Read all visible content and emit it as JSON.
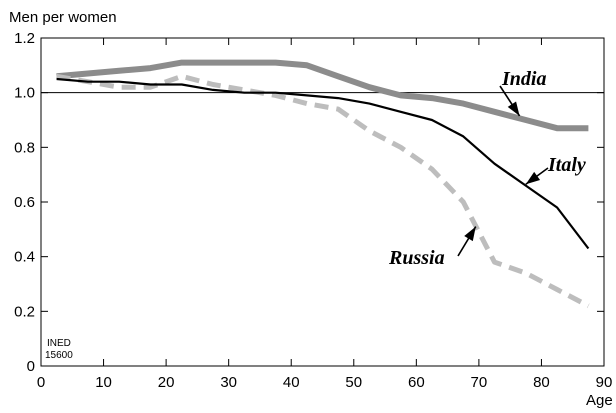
{
  "chart_data": {
    "type": "line",
    "ylabel": "Men per women",
    "xlabel": "Age",
    "xlim": [
      0,
      90
    ],
    "ylim": [
      0,
      1.2
    ],
    "xticks": [
      "0",
      "10",
      "20",
      "30",
      "40",
      "50",
      "60",
      "70",
      "80",
      "90"
    ],
    "yticks": [
      "0",
      "0.2",
      "0.4",
      "0.6",
      "0.8",
      "1.0",
      "1.2"
    ],
    "reference_line": 1.0,
    "grid": false,
    "series": [
      {
        "name": "India",
        "color": "#8c8c8c",
        "style": "solid-thick",
        "x": [
          2.5,
          7.5,
          12.5,
          17.5,
          22.5,
          27.5,
          32.5,
          37.5,
          42.5,
          47.5,
          52.5,
          57.5,
          62.5,
          67.5,
          72.5,
          77.5,
          82.5,
          87.5
        ],
        "values": [
          1.06,
          1.07,
          1.08,
          1.09,
          1.11,
          1.11,
          1.11,
          1.11,
          1.1,
          1.06,
          1.02,
          0.99,
          0.98,
          0.96,
          0.93,
          0.9,
          0.87,
          0.87
        ]
      },
      {
        "name": "Italy",
        "color": "#000000",
        "style": "solid-thin",
        "x": [
          2.5,
          7.5,
          12.5,
          17.5,
          22.5,
          27.5,
          32.5,
          37.5,
          42.5,
          47.5,
          52.5,
          57.5,
          62.5,
          67.5,
          72.5,
          77.5,
          82.5,
          87.5
        ],
        "values": [
          1.05,
          1.04,
          1.04,
          1.03,
          1.03,
          1.01,
          1.0,
          1.0,
          0.99,
          0.98,
          0.96,
          0.93,
          0.9,
          0.84,
          0.74,
          0.66,
          0.58,
          0.43
        ]
      },
      {
        "name": "Russia",
        "color": "#bdbdbd",
        "style": "dashed",
        "x": [
          2.5,
          7.5,
          12.5,
          17.5,
          22.5,
          27.5,
          32.5,
          37.5,
          42.5,
          47.5,
          52.5,
          57.5,
          62.5,
          67.5,
          72.5,
          77.5,
          82.5,
          87.5
        ],
        "values": [
          1.06,
          1.04,
          1.02,
          1.02,
          1.06,
          1.03,
          1.01,
          0.99,
          0.96,
          0.94,
          0.86,
          0.8,
          0.72,
          0.6,
          0.38,
          0.34,
          0.28,
          0.22
        ]
      }
    ],
    "annotation_lines": [
      "INED",
      "15600"
    ]
  }
}
